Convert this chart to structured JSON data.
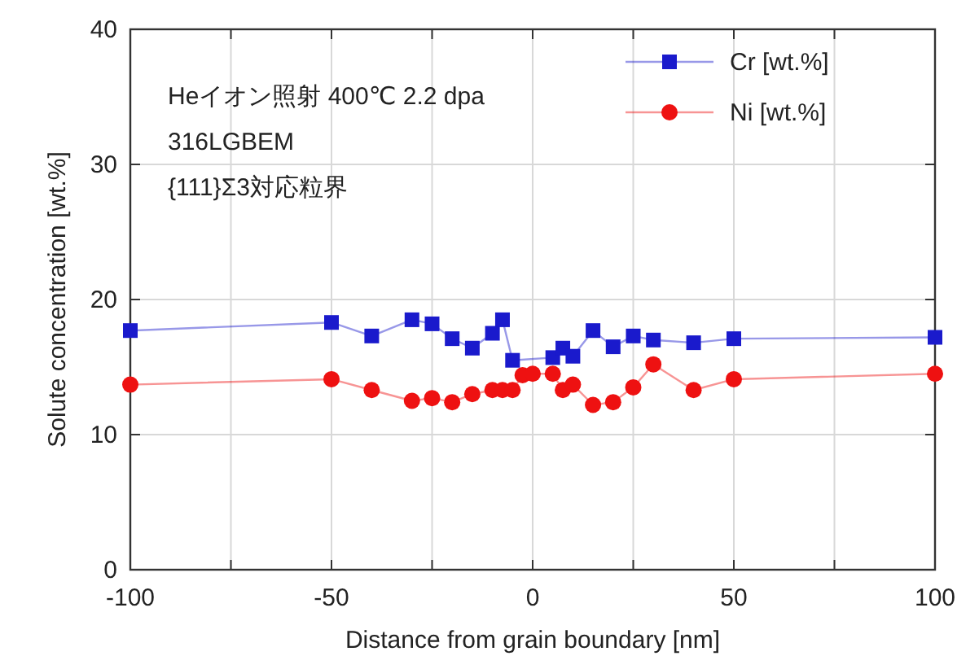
{
  "chart_data": {
    "type": "line",
    "xlabel": "Distance from grain boundary [nm]",
    "ylabel": "Solute concentration [wt.%]",
    "annotations": [
      "Heイオン照射 400℃ 2.2 dpa",
      "316LGBEM",
      "{111}Σ3対応粒界"
    ],
    "series": [
      {
        "name": "Cr [wt.%]",
        "color": "#1a1acc",
        "marker": "square",
        "x": [
          -100,
          -50,
          -40,
          -30,
          -25,
          -20,
          -15,
          -10,
          -7.5,
          -5,
          5,
          7.5,
          10,
          15,
          20,
          25,
          30,
          40,
          50,
          100
        ],
        "values": [
          17.7,
          18.3,
          17.3,
          18.5,
          18.2,
          17.1,
          16.4,
          17.5,
          18.5,
          15.5,
          15.7,
          16.4,
          15.8,
          17.7,
          16.5,
          17.3,
          17.0,
          16.8,
          17.1,
          17.2
        ]
      },
      {
        "name": "Ni [wt.%]",
        "color": "#ee1111",
        "marker": "circle",
        "x": [
          -100,
          -50,
          -40,
          -30,
          -25,
          -20,
          -15,
          -10,
          -7.5,
          -5,
          -2.5,
          0,
          5,
          7.5,
          10,
          15,
          20,
          25,
          30,
          40,
          50,
          100
        ],
        "values": [
          13.7,
          14.1,
          13.3,
          12.5,
          12.7,
          12.4,
          13.0,
          13.3,
          13.3,
          13.3,
          14.4,
          14.5,
          14.5,
          13.3,
          13.7,
          12.2,
          12.4,
          13.5,
          15.2,
          13.3,
          14.1,
          14.5
        ]
      }
    ],
    "xlim": [
      -100,
      100
    ],
    "xticks": [
      -100,
      {
        "value": -75,
        "label": null
      },
      -50,
      {
        "value": -25,
        "label": null
      },
      0,
      {
        "value": 25,
        "label": null
      },
      50,
      {
        "value": 75,
        "label": null
      },
      100
    ],
    "ylim": [
      0,
      40
    ],
    "yticks": [
      0,
      10,
      20,
      30,
      40
    ],
    "grid": true,
    "legend": "top right",
    "line_style": "solid"
  }
}
